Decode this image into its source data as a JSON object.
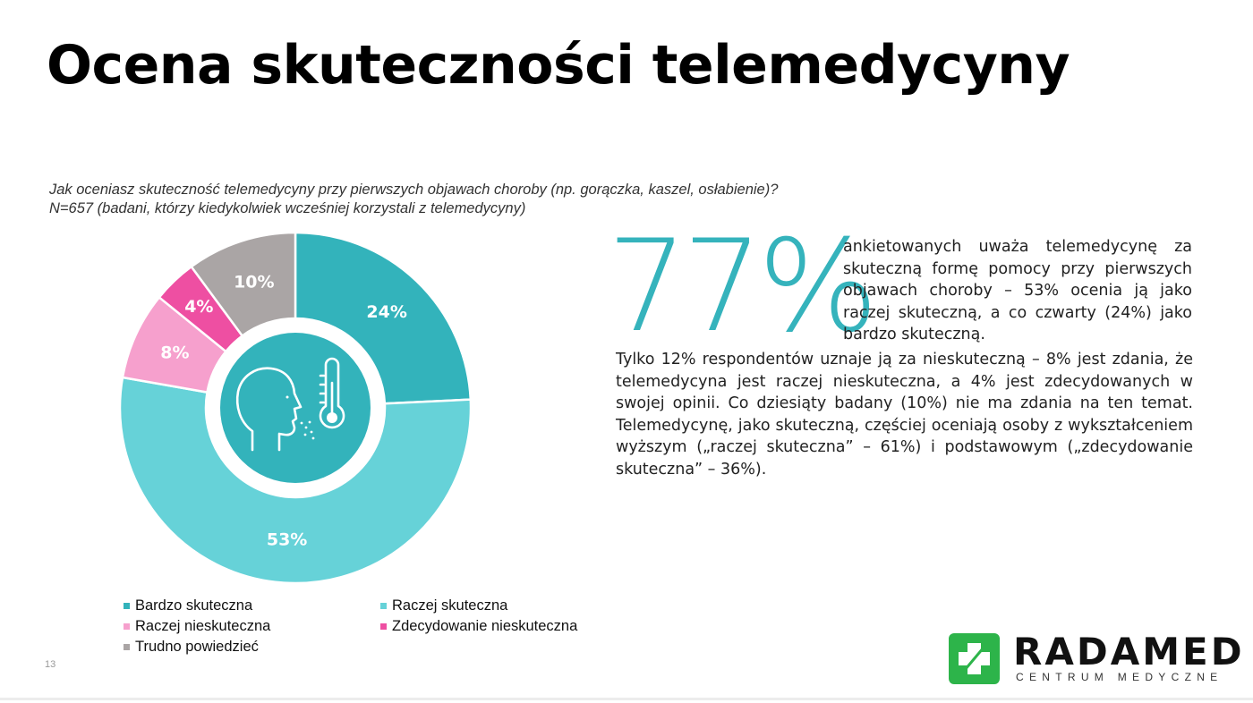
{
  "title": "Ocena skuteczności telemedycyny",
  "question": {
    "line1": "Jak oceniasz skuteczność telemedycyny przy pierwszych objawach choroby (np. gorączka, kaszel, osłabienie)?",
    "line2": "N=657 (badani, którzy kiedykolwiek wcześniej korzystali z telemedycyny)"
  },
  "chart_data": {
    "type": "pie",
    "style": "donut",
    "start": "top",
    "direction": "clockwise",
    "categories": [
      "Bardzo skuteczna",
      "Raczej skuteczna",
      "Raczej nieskuteczna",
      "Zdecydowanie nieskuteczna",
      "Trudno powiedzieć"
    ],
    "values": [
      24,
      53,
      8,
      4,
      10
    ],
    "labels": [
      "24%",
      "53%",
      "8%",
      "4%",
      "10%"
    ],
    "colors": [
      "#33b3bb",
      "#66d2d8",
      "#f6a0cd",
      "#ee4fa2",
      "#aaa5a5"
    ],
    "legend_position": "bottom",
    "center_icon": "person-fever-thermometer-icon",
    "center_color": "#33b3bb"
  },
  "highlight": {
    "value": "77%",
    "side_text": "ankietowanych uważa telemedycynę za skuteczną formę pomocy przy pierwszych objawach choroby – 53% ocenia ją jako raczej skuteczną, a co czwarty (24%) jako bardzo skuteczną.",
    "body_text": "Tylko 12% respondentów uznaje ją za nieskuteczną – 8% jest zdania, że telemedycyna jest raczej nieskuteczna, a 4% jest zdecydowanych w swojej opinii. Co dziesiąty badany (10%) nie ma zdania na ten temat. Telemedycynę, jako skuteczną, częściej oceniają osoby z wykształceniem wyższym („raczej skuteczna” – 61%) i podstawowym („zdecydowanie skuteczna” – 36%).",
    "color": "#35b3bc"
  },
  "page_number": "13",
  "logo": {
    "name": "RADAMED",
    "subtitle": "CENTRUM MEDYCZNE",
    "icon": "medical-cross-icon",
    "color": "#2db44a"
  }
}
